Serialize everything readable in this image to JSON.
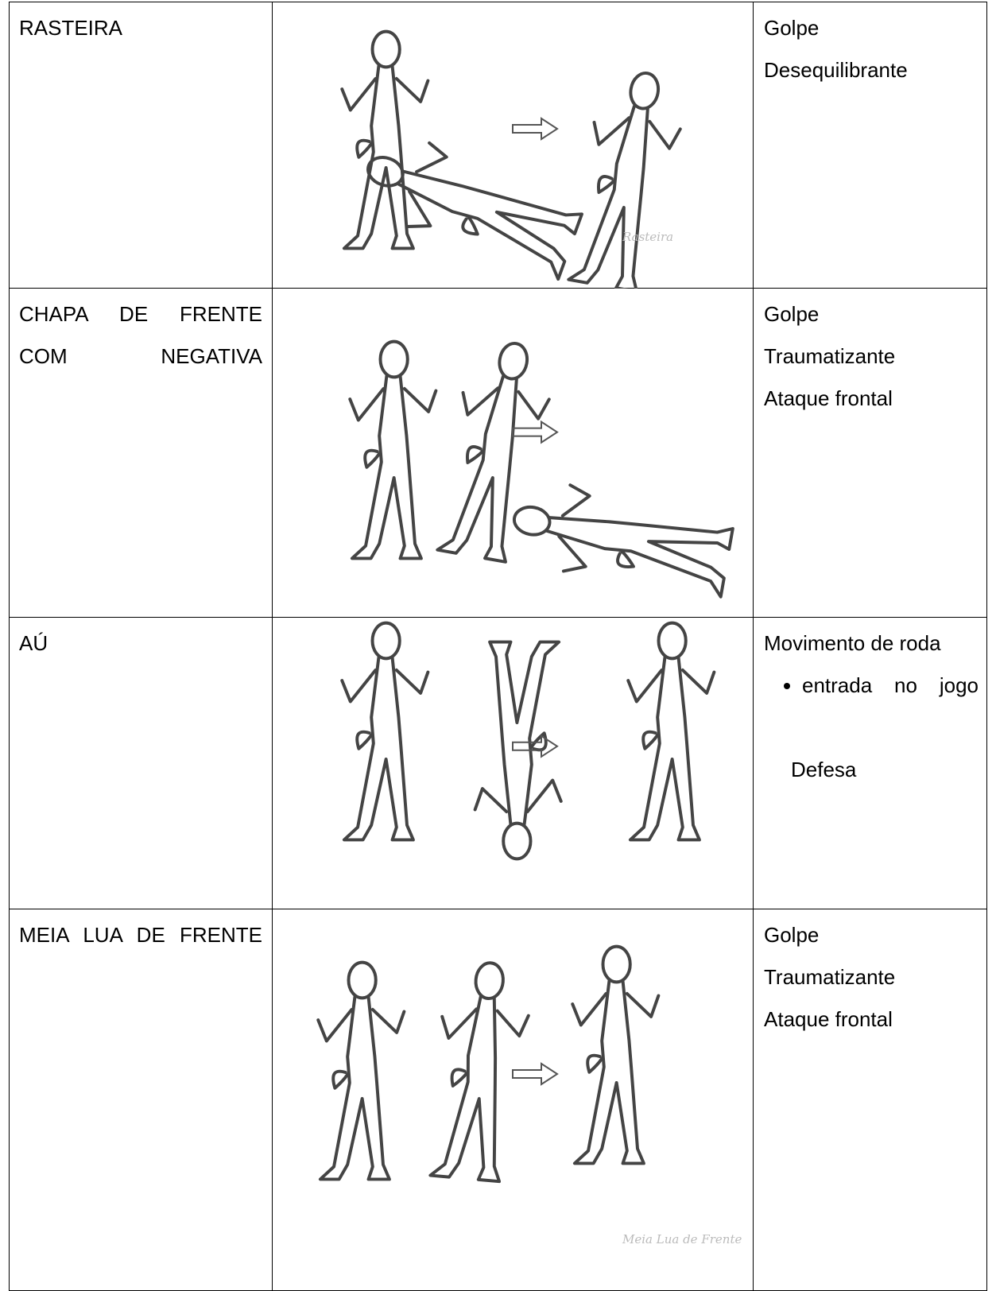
{
  "table": {
    "rows": [
      {
        "name": "RASTEIRA",
        "description": [
          "Golpe",
          "Desequilibrante"
        ],
        "image_caption": "Rasteira"
      },
      {
        "name": "CHAPA DE FRENTE COM NEGATIVA",
        "description": [
          "Golpe",
          "Traumatizante",
          "Ataque frontal"
        ]
      },
      {
        "name": "AÚ",
        "description": [
          "Movimento de roda"
        ],
        "bullets": [
          "entrada no jogo"
        ],
        "note": "Defesa"
      },
      {
        "name": "MEIA LUA DE FRENTE",
        "description": [
          "Golpe",
          "Traumatizante",
          "Ataque frontal"
        ],
        "image_caption": "Meia Lua de Frente"
      }
    ]
  }
}
